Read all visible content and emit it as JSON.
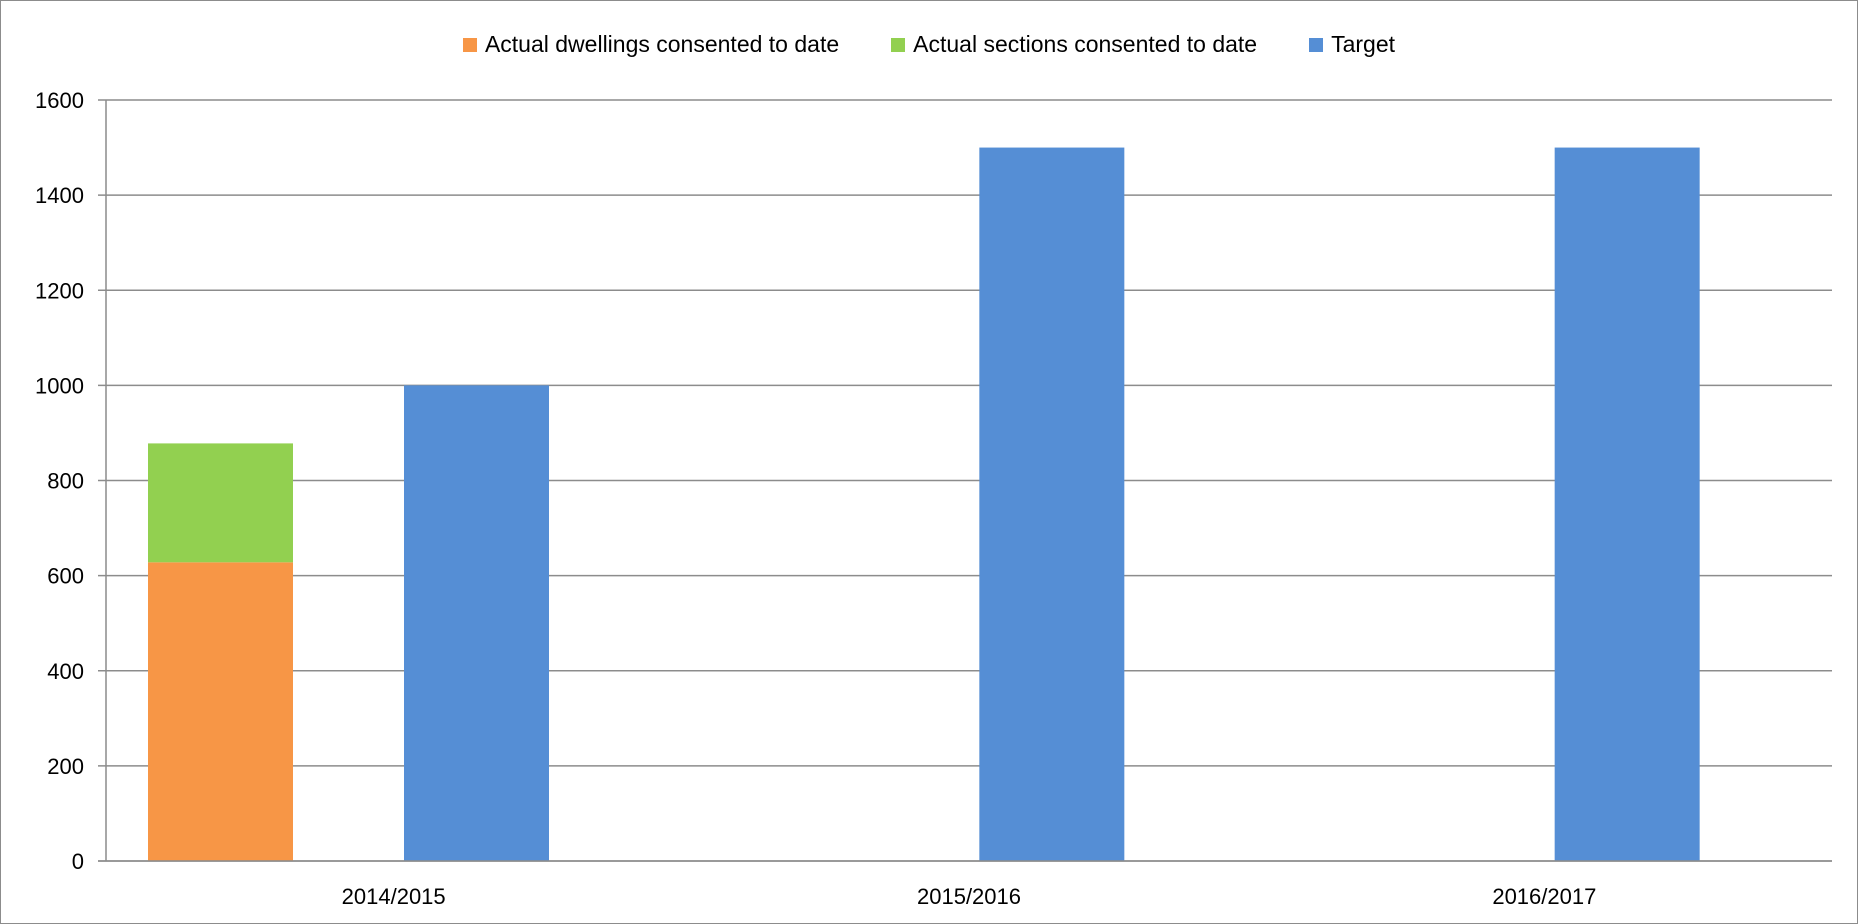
{
  "chart_data": {
    "type": "bar",
    "categories": [
      "2014/2015",
      "2015/2016",
      "2016/2017"
    ],
    "series": [
      {
        "name": "Actual dwellings consented to date",
        "color": "#f79646",
        "stack": "actual",
        "values": [
          628,
          null,
          null
        ]
      },
      {
        "name": "Actual sections consented to date",
        "color": "#92d050",
        "stack": "actual",
        "values": [
          250,
          null,
          null
        ]
      },
      {
        "name": "Target",
        "color": "#558ed5",
        "stack": "target",
        "values": [
          1000,
          1500,
          1500
        ]
      }
    ],
    "ylim": [
      0,
      1600
    ],
    "yticks": [
      0,
      200,
      400,
      600,
      800,
      1000,
      1200,
      1400,
      1600
    ],
    "grid": true,
    "legend_position": "top-center",
    "title": "",
    "xlabel": "",
    "ylabel": ""
  }
}
